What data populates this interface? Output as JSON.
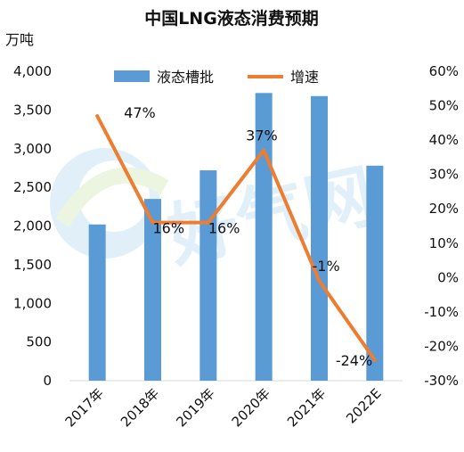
{
  "chart_data": {
    "type": "bar",
    "title": "中国LNG液态消费预期",
    "y_left_unit": "万吨",
    "categories": [
      "2017年",
      "2018年",
      "2019年",
      "2020年",
      "2021年",
      "2022E"
    ],
    "y_left_ticks": [
      "0",
      "500",
      "1,000",
      "1,500",
      "2,000",
      "2,500",
      "3,000",
      "3,500",
      "4,000"
    ],
    "y_left_range": [
      0,
      4000
    ],
    "y_right_ticks": [
      "-30%",
      "-20%",
      "-10%",
      "0%",
      "10%",
      "20%",
      "30%",
      "40%",
      "50%",
      "60%"
    ],
    "y_right_range": [
      -30,
      60
    ],
    "series": [
      {
        "name": "液态槽批",
        "type": "bar",
        "axis": "left",
        "color": "#5B9BD5",
        "values": [
          2020,
          2350,
          2720,
          3720,
          3680,
          2780
        ]
      },
      {
        "name": "增速",
        "type": "line",
        "axis": "right",
        "color": "#ED7D31",
        "values": [
          47,
          16,
          16,
          37,
          -1,
          -24
        ],
        "labels": [
          "47%",
          "16%",
          "16%",
          "37%",
          "-1%",
          "-24%"
        ]
      }
    ],
    "legend_position": "top-center",
    "grid": false,
    "watermark": "好气网"
  }
}
